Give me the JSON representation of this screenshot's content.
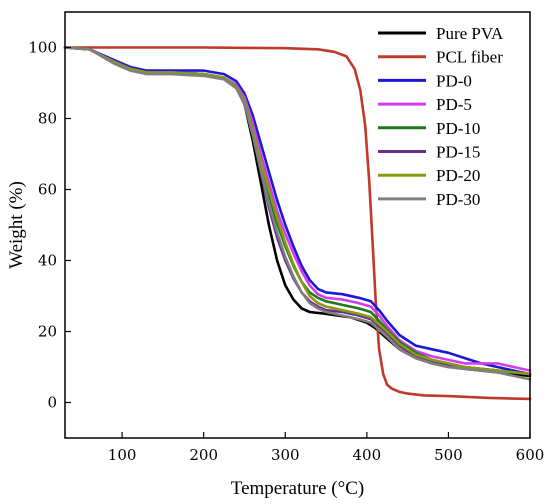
{
  "chart_data": {
    "type": "line",
    "title": "",
    "xlabel": "Temperature (°C)",
    "ylabel": "Weight (%)",
    "xlim": [
      30,
      600
    ],
    "ylim": [
      -10,
      110
    ],
    "xticks": [
      100,
      200,
      300,
      400,
      500,
      600
    ],
    "yticks": [
      0,
      20,
      40,
      60,
      80,
      100
    ],
    "grid": false,
    "legend": "top-right",
    "series": [
      {
        "name": "Pure PVA",
        "color": "#000000",
        "x": [
          30,
          60,
          90,
          110,
          130,
          160,
          200,
          225,
          240,
          250,
          260,
          270,
          280,
          290,
          300,
          310,
          320,
          330,
          350,
          380,
          400,
          410,
          420,
          440,
          460,
          480,
          500,
          520,
          540,
          560,
          580,
          600
        ],
        "y": [
          100,
          99.5,
          96,
          94,
          93,
          93,
          92.5,
          91.5,
          89,
          84,
          74,
          62,
          50,
          40,
          33,
          29,
          26.5,
          25.5,
          25,
          24,
          22.5,
          21,
          19,
          15,
          12.5,
          11,
          10,
          9.5,
          9,
          8.5,
          8,
          7.5
        ]
      },
      {
        "name": "PCL fiber",
        "color": "#c0392b",
        "x": [
          30,
          100,
          200,
          300,
          340,
          360,
          375,
          385,
          392,
          398,
          403,
          407,
          411,
          415,
          420,
          425,
          430,
          440,
          450,
          470,
          500,
          550,
          580,
          600
        ],
        "y": [
          100,
          100,
          100,
          99.8,
          99.5,
          98.8,
          97.5,
          94,
          88,
          78,
          62,
          45,
          28,
          15,
          8,
          5,
          4,
          3,
          2.5,
          2,
          1.8,
          1.3,
          1.1,
          1
        ]
      },
      {
        "name": "PD-0",
        "color": "#1a1ad6",
        "x": [
          30,
          60,
          90,
          110,
          130,
          160,
          200,
          225,
          240,
          250,
          260,
          270,
          280,
          290,
          300,
          310,
          320,
          330,
          340,
          350,
          370,
          390,
          405,
          415,
          425,
          440,
          460,
          480,
          500,
          520,
          540,
          560,
          580,
          600
        ],
        "y": [
          100,
          99.5,
          96.5,
          94.5,
          93.5,
          93.5,
          93.5,
          92.5,
          90.5,
          87,
          81,
          73,
          65,
          57,
          50,
          44,
          38.5,
          34.5,
          32,
          31,
          30.5,
          29.5,
          28.5,
          26,
          23,
          19,
          16,
          15,
          14,
          12.5,
          11,
          10,
          9,
          8
        ]
      },
      {
        "name": "PD-5",
        "color": "#d63af0",
        "x": [
          30,
          60,
          90,
          110,
          130,
          160,
          200,
          225,
          240,
          250,
          260,
          270,
          280,
          290,
          300,
          310,
          320,
          330,
          340,
          350,
          370,
          390,
          405,
          415,
          425,
          440,
          460,
          480,
          500,
          520,
          540,
          560,
          580,
          600
        ],
        "y": [
          100,
          99.5,
          96,
          94,
          93,
          93,
          92.5,
          91.5,
          89.5,
          86,
          79,
          70,
          62,
          54,
          47.5,
          42,
          37,
          33,
          30.5,
          29.5,
          29,
          28,
          27,
          24.5,
          21.5,
          17.5,
          14.5,
          13,
          12,
          11,
          11,
          11,
          10,
          9
        ]
      },
      {
        "name": "PD-10",
        "color": "#1f7a1f",
        "x": [
          30,
          60,
          90,
          110,
          130,
          160,
          200,
          225,
          240,
          250,
          260,
          270,
          280,
          290,
          300,
          310,
          320,
          330,
          340,
          350,
          370,
          390,
          405,
          415,
          425,
          440,
          460,
          480,
          500,
          520,
          540,
          560,
          580,
          600
        ],
        "y": [
          100,
          99.5,
          96,
          94,
          93,
          93,
          92.5,
          91.5,
          89,
          85,
          77,
          67,
          58,
          50.5,
          44,
          38.5,
          34,
          31,
          29.5,
          28.5,
          27.5,
          26.5,
          25.5,
          23,
          20.5,
          17,
          14,
          12,
          11,
          10,
          9.5,
          9,
          8.5,
          8
        ]
      },
      {
        "name": "PD-15",
        "color": "#6b2c91",
        "x": [
          30,
          60,
          90,
          110,
          130,
          160,
          200,
          225,
          240,
          250,
          260,
          270,
          280,
          290,
          300,
          310,
          320,
          330,
          340,
          350,
          370,
          390,
          405,
          415,
          425,
          440,
          460,
          480,
          500,
          520,
          540,
          560,
          580,
          600
        ],
        "y": [
          100,
          99.5,
          96,
          94,
          93,
          93,
          92.5,
          91.5,
          89,
          84.5,
          76,
          65,
          55,
          46.5,
          40,
          35,
          31,
          28.5,
          27,
          26,
          25.5,
          24.5,
          23.5,
          21.5,
          19.5,
          16,
          13,
          11.5,
          10.5,
          10,
          9.5,
          9,
          8.5,
          8
        ]
      },
      {
        "name": "PD-20",
        "color": "#8a9a10",
        "x": [
          30,
          60,
          90,
          110,
          130,
          160,
          200,
          225,
          240,
          250,
          260,
          270,
          280,
          290,
          300,
          310,
          320,
          330,
          340,
          350,
          370,
          390,
          405,
          415,
          425,
          440,
          460,
          480,
          500,
          520,
          540,
          560,
          580,
          600
        ],
        "y": [
          100,
          99.5,
          96,
          94,
          93,
          93,
          92.5,
          91.5,
          89,
          85,
          77,
          68,
          60,
          52,
          45,
          39,
          34,
          30,
          28,
          27,
          26,
          25,
          24,
          22,
          20,
          16.5,
          13.5,
          12,
          11,
          10,
          9.5,
          9,
          8.5,
          8
        ]
      },
      {
        "name": "PD-30",
        "color": "#808080",
        "x": [
          30,
          60,
          90,
          110,
          130,
          160,
          200,
          225,
          240,
          250,
          260,
          270,
          280,
          290,
          300,
          310,
          320,
          330,
          340,
          350,
          370,
          390,
          405,
          415,
          425,
          440,
          460,
          480,
          500,
          520,
          540,
          560,
          580,
          600
        ],
        "y": [
          100,
          99.5,
          95.5,
          93.5,
          92.5,
          92.5,
          92,
          91,
          88.5,
          84,
          75.5,
          65.5,
          56,
          48,
          41,
          35.5,
          31,
          28,
          26.5,
          25.5,
          24.5,
          23.5,
          22.5,
          20.5,
          18.5,
          15,
          12.5,
          11,
          10,
          9.5,
          9,
          8.5,
          7.5,
          6.5
        ]
      }
    ]
  }
}
